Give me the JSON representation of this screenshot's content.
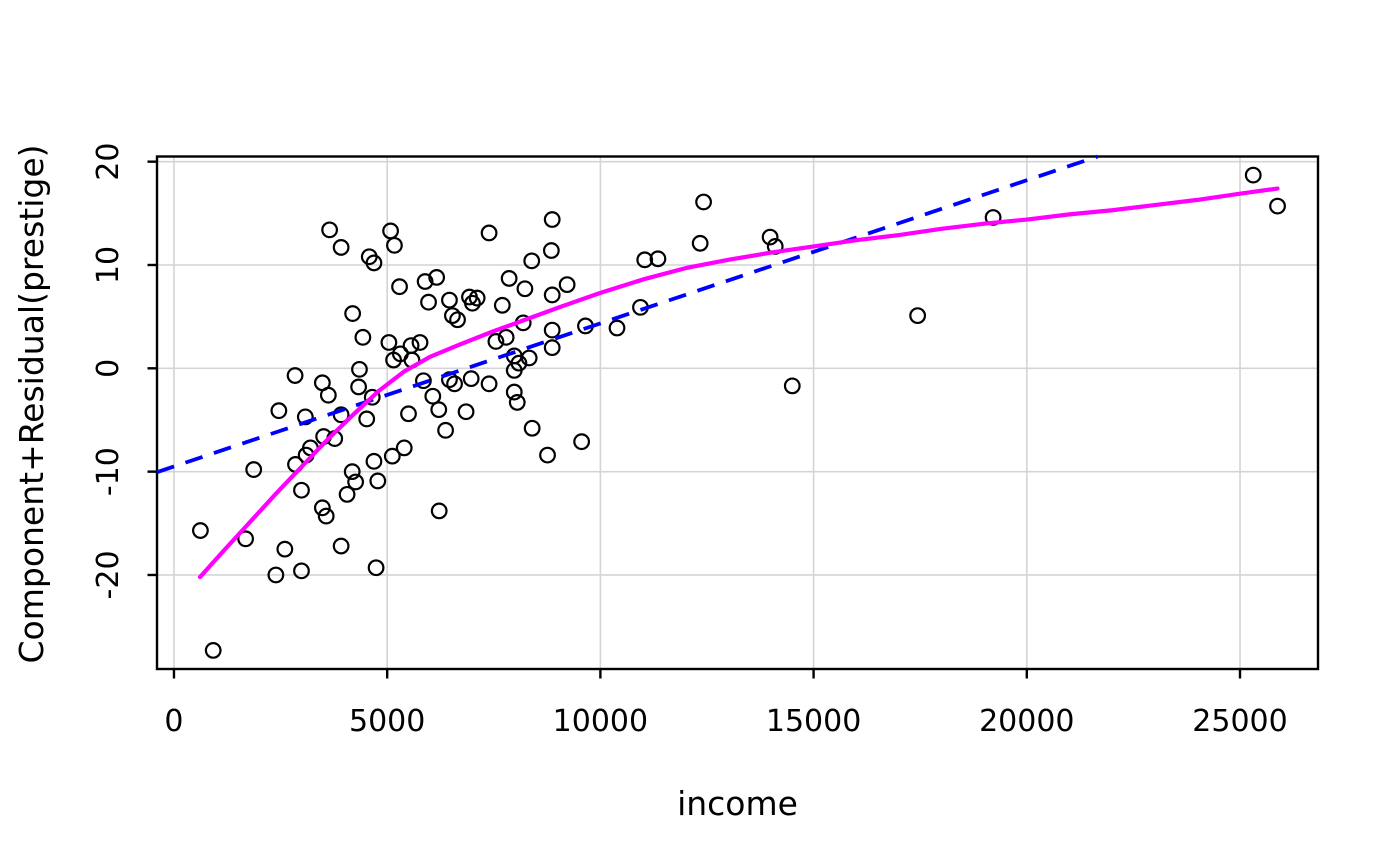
{
  "chart_data": {
    "type": "scatter",
    "title": "",
    "xlabel": "income",
    "ylabel": "Component+Residual(prestige)",
    "x_ticks": [
      0,
      5000,
      10000,
      15000,
      20000,
      25000
    ],
    "y_ticks": [
      -20,
      -10,
      0,
      10,
      20
    ],
    "xlim": [
      -398,
      26829
    ],
    "ylim": [
      -29.1,
      20.5
    ],
    "grid": true,
    "grid_color": "#d4d4d4",
    "legend": "none",
    "point_style": {
      "shape": "open-circle",
      "color": "#000000"
    },
    "points": [
      [
        3650,
        13.4
      ],
      [
        3920,
        11.7
      ],
      [
        5080,
        13.3
      ],
      [
        5170,
        11.9
      ],
      [
        4580,
        10.8
      ],
      [
        4690,
        10.2
      ],
      [
        5290,
        7.9
      ],
      [
        5890,
        8.4
      ],
      [
        6160,
        8.8
      ],
      [
        5970,
        6.4
      ],
      [
        4190,
        5.3
      ],
      [
        4430,
        3.0
      ],
      [
        5040,
        2.5
      ],
      [
        5310,
        1.4
      ],
      [
        5560,
        2.2
      ],
      [
        5770,
        2.5
      ],
      [
        5580,
        0.8
      ],
      [
        5150,
        0.8
      ],
      [
        4350,
        -0.1
      ],
      [
        2840,
        -0.7
      ],
      [
        3480,
        -1.4
      ],
      [
        4330,
        -1.8
      ],
      [
        3620,
        -2.6
      ],
      [
        4650,
        -2.8
      ],
      [
        5850,
        -1.2
      ],
      [
        6070,
        -2.7
      ],
      [
        6460,
        6.6
      ],
      [
        6930,
        6.9
      ],
      [
        7110,
        6.8
      ],
      [
        7000,
        6.3
      ],
      [
        6530,
        5.1
      ],
      [
        6650,
        4.7
      ],
      [
        6460,
        -1.1
      ],
      [
        6580,
        -1.5
      ],
      [
        6970,
        -1.0
      ],
      [
        7390,
        -1.5
      ],
      [
        7980,
        -2.3
      ],
      [
        12420,
        16.1
      ],
      [
        8870,
        14.4
      ],
      [
        7390,
        13.1
      ],
      [
        8850,
        11.4
      ],
      [
        8390,
        10.4
      ],
      [
        12340,
        12.1
      ],
      [
        11040,
        10.5
      ],
      [
        11350,
        10.6
      ],
      [
        7860,
        8.7
      ],
      [
        8230,
        7.7
      ],
      [
        9220,
        8.1
      ],
      [
        8870,
        7.1
      ],
      [
        7700,
        6.1
      ],
      [
        8190,
        4.4
      ],
      [
        10940,
        5.9
      ],
      [
        10390,
        3.9
      ],
      [
        9650,
        4.1
      ],
      [
        8870,
        3.7
      ],
      [
        7550,
        2.6
      ],
      [
        7790,
        3.0
      ],
      [
        7980,
        1.2
      ],
      [
        8330,
        1.0
      ],
      [
        8090,
        0.5
      ],
      [
        8870,
        2.0
      ],
      [
        7980,
        -0.2
      ],
      [
        13980,
        12.7
      ],
      [
        14100,
        11.8
      ],
      [
        19210,
        14.6
      ],
      [
        17440,
        5.1
      ],
      [
        14500,
        -1.7
      ],
      [
        25310,
        18.7
      ],
      [
        25880,
        15.7
      ],
      [
        2460,
        -4.1
      ],
      [
        3080,
        -4.7
      ],
      [
        3920,
        -4.5
      ],
      [
        4520,
        -4.9
      ],
      [
        5500,
        -4.4
      ],
      [
        6210,
        -4.0
      ],
      [
        6370,
        -6.0
      ],
      [
        3510,
        -6.6
      ],
      [
        3770,
        -6.8
      ],
      [
        3200,
        -7.7
      ],
      [
        3100,
        -8.4
      ],
      [
        2850,
        -9.3
      ],
      [
        1870,
        -9.8
      ],
      [
        4180,
        -10.0
      ],
      [
        5400,
        -7.7
      ],
      [
        5120,
        -8.5
      ],
      [
        4690,
        -9.0
      ],
      [
        4260,
        -11.0
      ],
      [
        4780,
        -10.9
      ],
      [
        2990,
        -11.8
      ],
      [
        4060,
        -12.2
      ],
      [
        3480,
        -13.5
      ],
      [
        3570,
        -14.3
      ],
      [
        6220,
        -13.8
      ],
      [
        620,
        -15.7
      ],
      [
        1680,
        -16.5
      ],
      [
        2600,
        -17.5
      ],
      [
        3920,
        -17.2
      ],
      [
        2390,
        -20.0
      ],
      [
        2990,
        -19.6
      ],
      [
        4740,
        -19.3
      ],
      [
        920,
        -27.3
      ],
      [
        6850,
        -4.2
      ],
      [
        8400,
        -5.8
      ],
      [
        8760,
        -8.4
      ],
      [
        9560,
        -7.1
      ],
      [
        8050,
        -3.3
      ]
    ],
    "fit_line": {
      "name": "linear-component-line",
      "style": "dashed",
      "color": "#0000ff",
      "intercept": -9.5,
      "slope": 0.001385,
      "x_start": -398,
      "x_end": 21660
    },
    "smooth_line": {
      "name": "loess-smooth",
      "style": "solid",
      "color": "#ff00ff",
      "points": [
        [
          611,
          -20.2
        ],
        [
          1200,
          -17.5
        ],
        [
          1800,
          -14.8
        ],
        [
          2400,
          -12.1
        ],
        [
          3000,
          -9.5
        ],
        [
          3600,
          -6.9
        ],
        [
          4200,
          -4.5
        ],
        [
          4800,
          -2.2
        ],
        [
          5400,
          -0.3
        ],
        [
          6000,
          1.1
        ],
        [
          6700,
          2.3
        ],
        [
          7500,
          3.6
        ],
        [
          8300,
          4.8
        ],
        [
          9100,
          6.0
        ],
        [
          10000,
          7.3
        ],
        [
          11000,
          8.6
        ],
        [
          12000,
          9.7
        ],
        [
          13000,
          10.5
        ],
        [
          14000,
          11.2
        ],
        [
          15000,
          11.8
        ],
        [
          16000,
          12.4
        ],
        [
          17000,
          12.9
        ],
        [
          18000,
          13.5
        ],
        [
          19000,
          14.0
        ],
        [
          20000,
          14.4
        ],
        [
          21000,
          14.9
        ],
        [
          22000,
          15.3
        ],
        [
          23000,
          15.8
        ],
        [
          24000,
          16.3
        ],
        [
          25000,
          16.9
        ],
        [
          25880,
          17.4
        ]
      ]
    }
  }
}
